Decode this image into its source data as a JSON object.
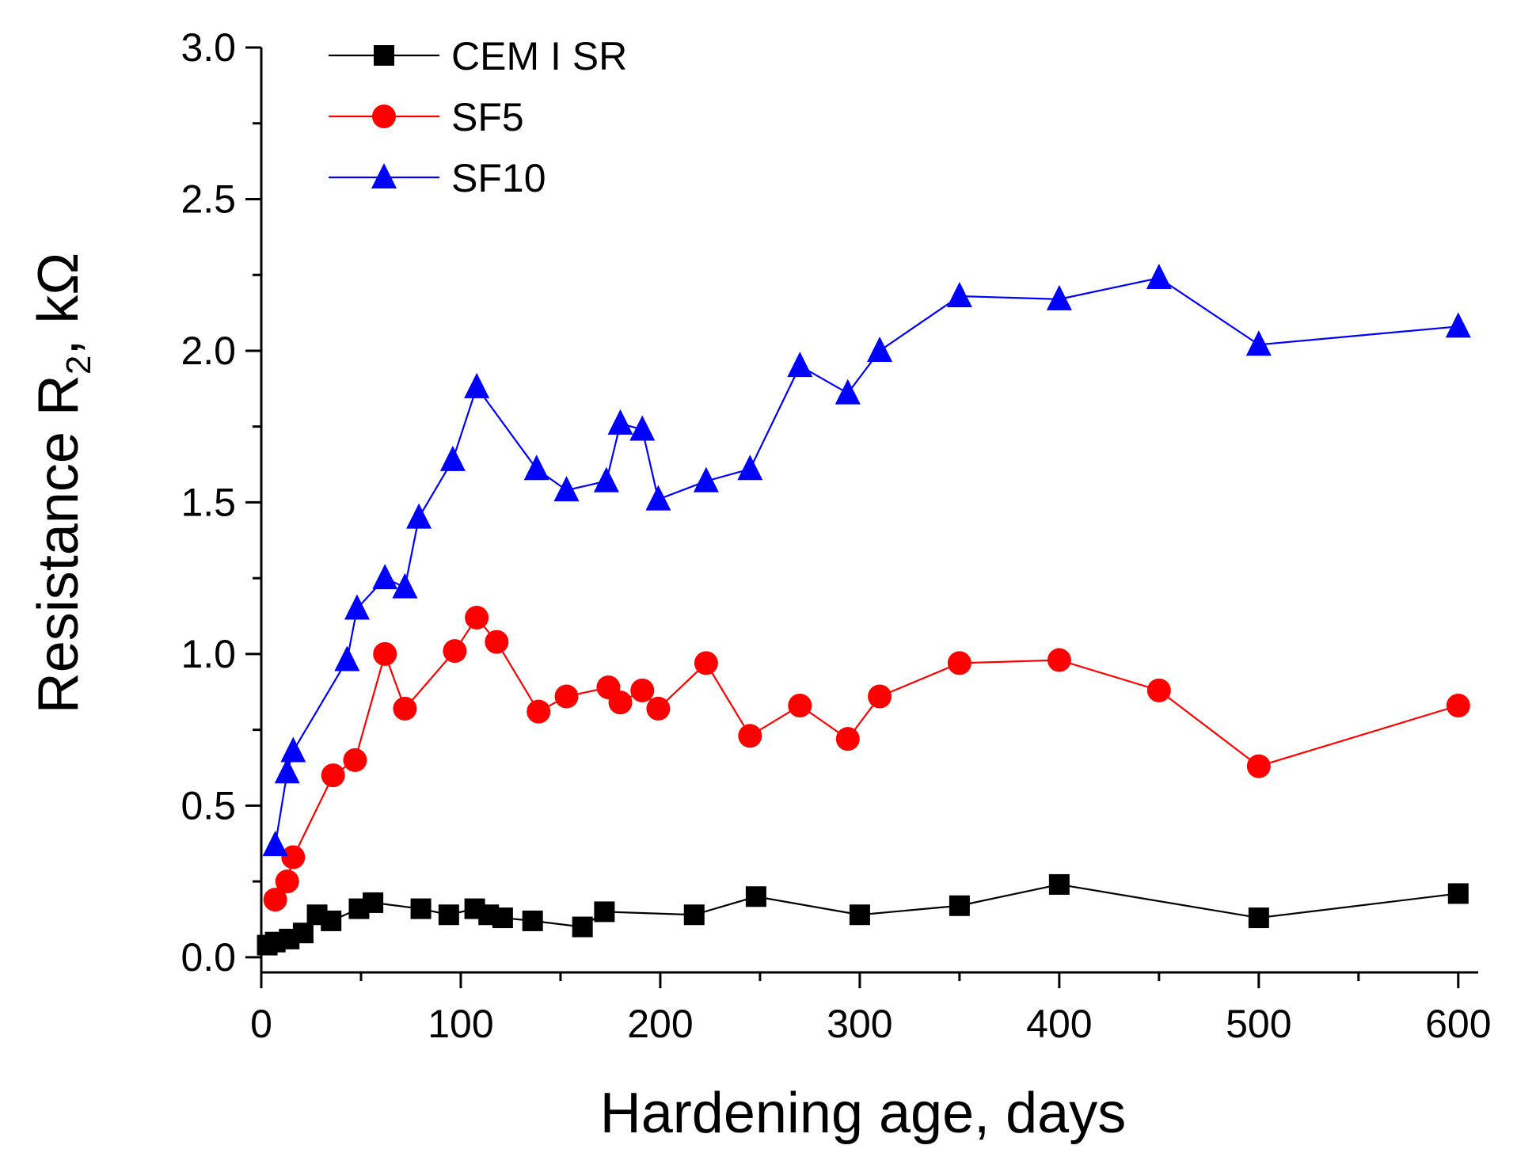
{
  "chart_data": {
    "type": "line",
    "title": "",
    "xlabel": "Hardening age, days",
    "ylabel": "Resistance R₂, kΩ",
    "ylabel_parts": {
      "main": "Resistance R",
      "sub": "2",
      "tail": ", kΩ"
    },
    "xlim": [
      0,
      610
    ],
    "ylim": [
      -0.05,
      3.0
    ],
    "xticks": [
      0,
      100,
      200,
      300,
      400,
      500,
      600
    ],
    "xtick_labels": [
      "0",
      "100",
      "200",
      "300",
      "400",
      "500",
      "600"
    ],
    "yticks": [
      0.0,
      0.5,
      1.0,
      1.5,
      2.0,
      2.5,
      3.0
    ],
    "ytick_labels": [
      "0.0",
      "0.5",
      "1.0",
      "1.5",
      "2.0",
      "2.5",
      "3.0"
    ],
    "x_minor_step": 50,
    "y_minor_step": 0.25,
    "grid": false,
    "legend_position": "top-left",
    "series": [
      {
        "name": "CEM I SR",
        "color": "#000000",
        "marker": "square",
        "x": [
          3,
          7,
          14,
          21,
          28,
          35,
          49,
          56,
          80,
          94,
          107,
          114,
          121,
          136,
          161,
          172,
          217,
          248,
          300,
          350,
          400,
          500,
          600
        ],
        "y": [
          0.04,
          0.05,
          0.06,
          0.08,
          0.14,
          0.12,
          0.16,
          0.18,
          0.16,
          0.14,
          0.16,
          0.14,
          0.13,
          0.12,
          0.1,
          0.15,
          0.14,
          0.2,
          0.14,
          0.17,
          0.24,
          0.13,
          0.21
        ]
      },
      {
        "name": "SF5",
        "color": "#ff0000",
        "marker": "circle",
        "x": [
          7,
          13,
          16,
          36,
          47,
          62,
          72,
          97,
          108,
          118,
          139,
          153,
          174,
          180,
          191,
          199,
          223,
          245,
          270,
          294,
          310,
          350,
          400,
          450,
          500,
          600
        ],
        "y": [
          0.19,
          0.25,
          0.33,
          0.6,
          0.65,
          1.0,
          0.82,
          1.01,
          1.12,
          1.04,
          0.81,
          0.86,
          0.89,
          0.84,
          0.88,
          0.82,
          0.97,
          0.73,
          0.83,
          0.72,
          0.86,
          0.97,
          0.98,
          0.88,
          0.63,
          0.83
        ]
      },
      {
        "name": "SF10",
        "color": "#0000ff",
        "marker": "triangle",
        "x": [
          7,
          13,
          16,
          43,
          48,
          62,
          72,
          79,
          96,
          108,
          138,
          153,
          173,
          180,
          191,
          199,
          223,
          245,
          270,
          294,
          310,
          350,
          400,
          450,
          500,
          600
        ],
        "y": [
          0.37,
          0.61,
          0.68,
          0.98,
          1.15,
          1.25,
          1.22,
          1.45,
          1.64,
          1.88,
          1.61,
          1.54,
          1.57,
          1.76,
          1.74,
          1.51,
          1.57,
          1.61,
          1.95,
          1.86,
          2.0,
          2.18,
          2.17,
          2.24,
          2.02,
          2.08
        ]
      }
    ]
  }
}
